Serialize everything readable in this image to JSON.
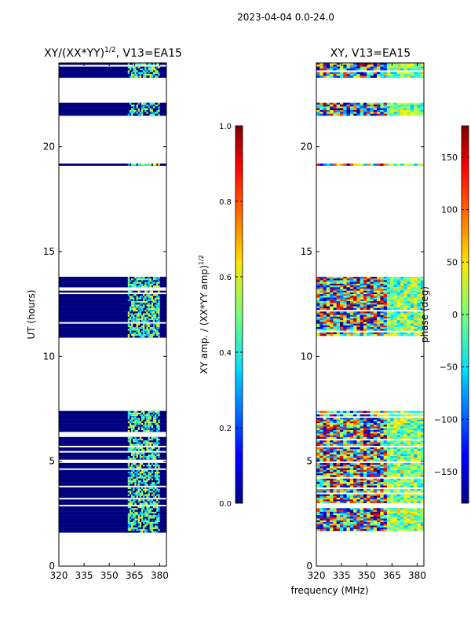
{
  "figure": {
    "suptitle": "2023-04-04 0.0-24.0",
    "shared_xlabel": "frequency (MHz)"
  },
  "chart_data": [
    {
      "type": "heatmap",
      "title": "XY/(XX*YY)1/2, V13=EA15",
      "title_main": "XY/(XX*YY)",
      "title_sup": "1/2",
      "title_tail": ", V13=EA15",
      "ylabel": "UT (hours)",
      "xlim": [
        320,
        384
      ],
      "ylim": [
        0,
        24
      ],
      "xticks": [
        320,
        335,
        350,
        365,
        380
      ],
      "yticks": [
        0,
        5,
        10,
        15,
        20
      ],
      "colormap": "jet",
      "colorbar": {
        "label": "XY amp. / (XX*YY amp)1/2",
        "label_main": "XY amp. / (XX*YY amp)",
        "label_sup": "1/2",
        "vmin": 0.0,
        "vmax": 1.0,
        "ticks": [
          "0.0",
          "0.2",
          "0.4",
          "0.6",
          "0.8",
          "1.0"
        ]
      },
      "data_blocks_hours": [
        [
          1.6,
          2.6
        ],
        [
          2.6,
          7.4
        ],
        [
          10.9,
          13.8
        ],
        [
          19.1,
          19.2
        ],
        [
          21.4,
          22.1
        ],
        [
          23.3,
          24.0
        ]
      ],
      "value_pattern": "low (~0.05) across 320-360 MHz; ~0.3-0.6 in channels 361-380 MHz"
    },
    {
      "type": "heatmap",
      "title": "XY, V13=EA15",
      "ylabel": "",
      "xlim": [
        320,
        384
      ],
      "ylim": [
        0,
        24
      ],
      "xticks": [
        320,
        335,
        350,
        365,
        380
      ],
      "yticks": [
        0,
        5,
        10,
        15,
        20
      ],
      "colormap": "jet",
      "colorbar": {
        "label": "phase (deg)",
        "vmin": -180,
        "vmax": 180,
        "ticks": [
          "150",
          "100",
          "50",
          "0",
          "−50",
          "−100",
          "−150"
        ]
      },
      "data_blocks_hours": [
        [
          1.6,
          2.6
        ],
        [
          2.6,
          7.4
        ],
        [
          10.9,
          13.8
        ],
        [
          19.1,
          19.2
        ],
        [
          21.4,
          22.1
        ],
        [
          23.3,
          24.0
        ]
      ],
      "value_pattern": "noisy phase spanning -180 to 180 deg, varying by channel and time"
    }
  ]
}
